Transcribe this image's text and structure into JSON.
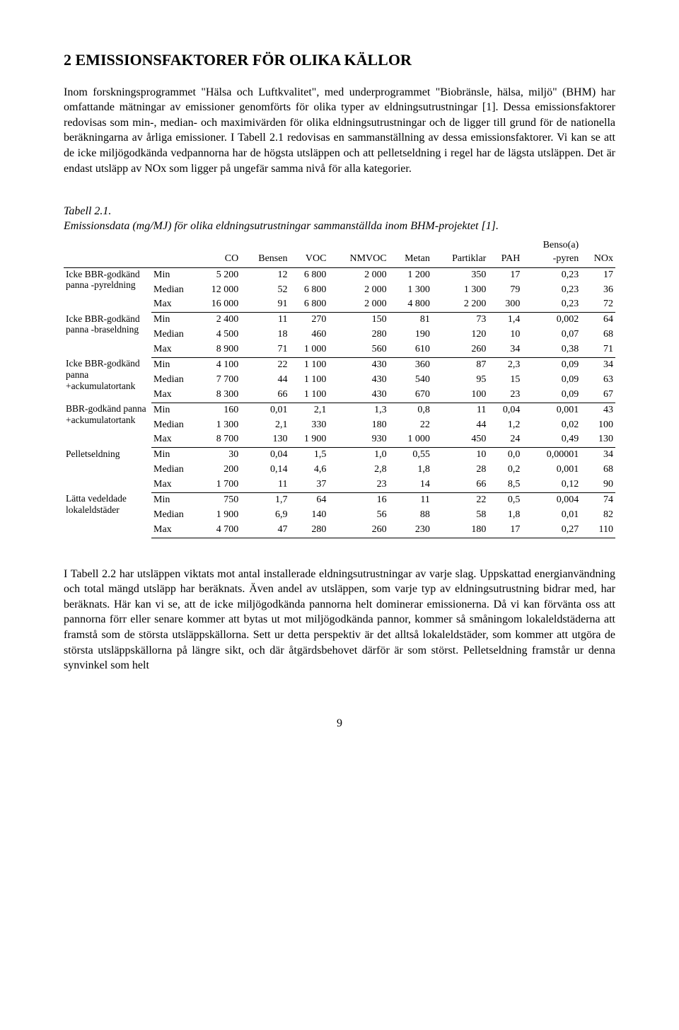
{
  "heading": "2 EMISSIONSFAKTORER FÖR OLIKA KÄLLOR",
  "para1": "Inom forskningsprogrammet \"Hälsa och Luftkvalitet\", med underprogrammet \"Biobränsle, hälsa, miljö\" (BHM) har omfattande mätningar av emissioner genomförts för olika typer av eldningsutrustningar [1]. Dessa emissionsfaktorer redovisas som min-, median- och maximivärden för olika eldningsutrustningar och de ligger till grund för de nationella beräkningarna av årliga emissioner. I Tabell 2.1 redovisas en sammanställning av dessa emissionsfaktorer. Vi kan se att de icke miljögodkända vedpannorna har de högsta utsläppen och att pelletseldning i regel har de lägsta utsläppen. Det är endast utsläpp av NOx som ligger på ungefär samma nivå för alla kategorier.",
  "caption_label": "Tabell 2.1.",
  "caption_text": "Emissionsdata (mg/MJ) för olika eldningsutrustningar sammanställda inom BHM-projektet [1].",
  "columns": [
    "",
    "",
    "CO",
    "Bensen",
    "VOC",
    "NMVOC",
    "Metan",
    "Partiklar",
    "PAH",
    "Benso(a)\n-pyren",
    "NOx"
  ],
  "groups": [
    {
      "label": "Icke BBR-godkänd panna -pyreldning",
      "rows": [
        {
          "stat": "Min",
          "v": [
            "5 200",
            "12",
            "6 800",
            "2 000",
            "1 200",
            "350",
            "17",
            "0,23",
            "17"
          ]
        },
        {
          "stat": "Median",
          "v": [
            "12 000",
            "52",
            "6 800",
            "2 000",
            "1 300",
            "1 300",
            "79",
            "0,23",
            "36"
          ]
        },
        {
          "stat": "Max",
          "v": [
            "16 000",
            "91",
            "6 800",
            "2 000",
            "4 800",
            "2 200",
            "300",
            "0,23",
            "72"
          ]
        }
      ]
    },
    {
      "label": "Icke BBR-godkänd panna -braseldning",
      "rows": [
        {
          "stat": "Min",
          "v": [
            "2 400",
            "11",
            "270",
            "150",
            "81",
            "73",
            "1,4",
            "0,002",
            "64"
          ]
        },
        {
          "stat": "Median",
          "v": [
            "4 500",
            "18",
            "460",
            "280",
            "190",
            "120",
            "10",
            "0,07",
            "68"
          ]
        },
        {
          "stat": "Max",
          "v": [
            "8 900",
            "71",
            "1 000",
            "560",
            "610",
            "260",
            "34",
            "0,38",
            "71"
          ]
        }
      ]
    },
    {
      "label": "Icke BBR-godkänd panna +ackumulatortank",
      "rows": [
        {
          "stat": "Min",
          "v": [
            "4 100",
            "22",
            "1 100",
            "430",
            "360",
            "87",
            "2,3",
            "0,09",
            "34"
          ]
        },
        {
          "stat": "Median",
          "v": [
            "7 700",
            "44",
            "1 100",
            "430",
            "540",
            "95",
            "15",
            "0,09",
            "63"
          ]
        },
        {
          "stat": "Max",
          "v": [
            "8 300",
            "66",
            "1 100",
            "430",
            "670",
            "100",
            "23",
            "0,09",
            "67"
          ]
        }
      ]
    },
    {
      "label": "BBR-godkänd panna +ackumulatortank",
      "rows": [
        {
          "stat": "Min",
          "v": [
            "160",
            "0,01",
            "2,1",
            "1,3",
            "0,8",
            "11",
            "0,04",
            "0,001",
            "43"
          ]
        },
        {
          "stat": "Median",
          "v": [
            "1 300",
            "2,1",
            "330",
            "180",
            "22",
            "44",
            "1,2",
            "0,02",
            "100"
          ]
        },
        {
          "stat": "Max",
          "v": [
            "8 700",
            "130",
            "1 900",
            "930",
            "1 000",
            "450",
            "24",
            "0,49",
            "130"
          ]
        }
      ]
    },
    {
      "label": "Pelletseldning",
      "rows": [
        {
          "stat": "Min",
          "v": [
            "30",
            "0,04",
            "1,5",
            "1,0",
            "0,55",
            "10",
            "0,0",
            "0,00001",
            "34"
          ]
        },
        {
          "stat": "Median",
          "v": [
            "200",
            "0,14",
            "4,6",
            "2,8",
            "1,8",
            "28",
            "0,2",
            "0,001",
            "68"
          ]
        },
        {
          "stat": "Max",
          "v": [
            "1 700",
            "11",
            "37",
            "23",
            "14",
            "66",
            "8,5",
            "0,12",
            "90"
          ]
        }
      ]
    },
    {
      "label": "Lätta vedeldade lokaleldstäder",
      "rows": [
        {
          "stat": "Min",
          "v": [
            "750",
            "1,7",
            "64",
            "16",
            "11",
            "22",
            "0,5",
            "0,004",
            "74"
          ]
        },
        {
          "stat": "Median",
          "v": [
            "1 900",
            "6,9",
            "140",
            "56",
            "88",
            "58",
            "1,8",
            "0,01",
            "82"
          ]
        },
        {
          "stat": "Max",
          "v": [
            "4 700",
            "47",
            "280",
            "260",
            "230",
            "180",
            "17",
            "0,27",
            "110"
          ]
        }
      ]
    }
  ],
  "para2": "I Tabell 2.2 har utsläppen viktats mot antal installerade eldningsutrustningar av varje slag. Uppskattad energianvändning och total mängd utsläpp har beräknats. Även andel av utsläppen, som varje typ av eldningsutrustning bidrar med, har beräknats. Här kan vi se, att de icke miljögodkända pannorna helt dominerar emissionerna. Då vi kan förvänta oss att pannorna förr eller senare kommer att bytas ut mot miljögodkända pannor, kommer så småningom lokaleldstäderna att framstå som de största utsläppskällorna. Sett ur detta perspektiv är det alltså lokaleldstäder, som kommer att utgöra de största utsläppskällorna på längre sikt, och där åtgärdsbehovet därför är som störst. Pelletseldning framstår ur denna synvinkel som helt",
  "pagenum": "9"
}
